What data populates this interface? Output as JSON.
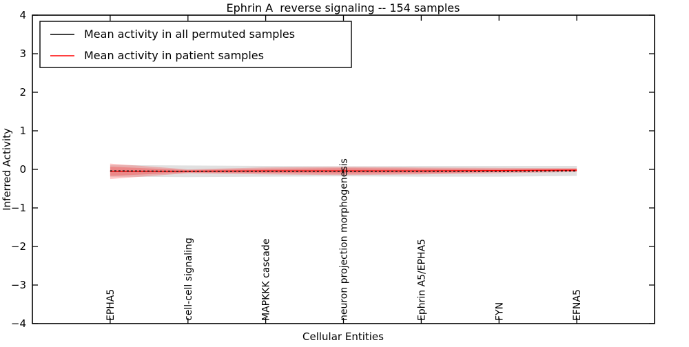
{
  "chart_data": {
    "type": "line",
    "title": "Ephrin A  reverse signaling -- 154 samples",
    "xlabel": "Cellular Entities",
    "ylabel": "Inferred Activity",
    "ylim": [
      -4,
      4
    ],
    "yticks": [
      -4,
      -3,
      -2,
      -1,
      0,
      1,
      2,
      3,
      4
    ],
    "grid": false,
    "categories": [
      "EPHA5",
      "cell-cell signaling",
      "MAPKKK cascade",
      "neuron projection morphogenesis",
      "Ephrin A5/EPHA5",
      "FYN",
      "EFNA5"
    ],
    "series": [
      {
        "name": "Mean activity in all permuted samples",
        "color": "#000000",
        "line_style": "dashed",
        "values": [
          -0.04,
          -0.05,
          -0.05,
          -0.05,
          -0.05,
          -0.05,
          -0.04
        ],
        "band": {
          "color": "#999999",
          "alpha": 0.3,
          "half_widths": [
            0.15,
            0.15,
            0.14,
            0.13,
            0.14,
            0.14,
            0.13
          ]
        }
      },
      {
        "name": "Mean activity in patient samples",
        "color": "#ff0000",
        "line_style": "solid",
        "values": [
          -0.05,
          -0.05,
          -0.04,
          -0.04,
          -0.04,
          -0.03,
          -0.02
        ],
        "band": {
          "color": "#ff0000",
          "alpha": 0.22,
          "half_widths": [
            0.2,
            0.05,
            0.09,
            0.11,
            0.09,
            0.07,
            0.05
          ],
          "inner_half_widths": [
            0.12,
            0.03,
            0.05,
            0.07,
            0.06,
            0.04,
            0.03
          ]
        }
      }
    ],
    "legend": {
      "position": "upper left",
      "items": [
        {
          "label": "Mean activity in all permuted samples",
          "color": "#000000"
        },
        {
          "label": "Mean activity in patient samples",
          "color": "#ff0000"
        }
      ]
    }
  }
}
